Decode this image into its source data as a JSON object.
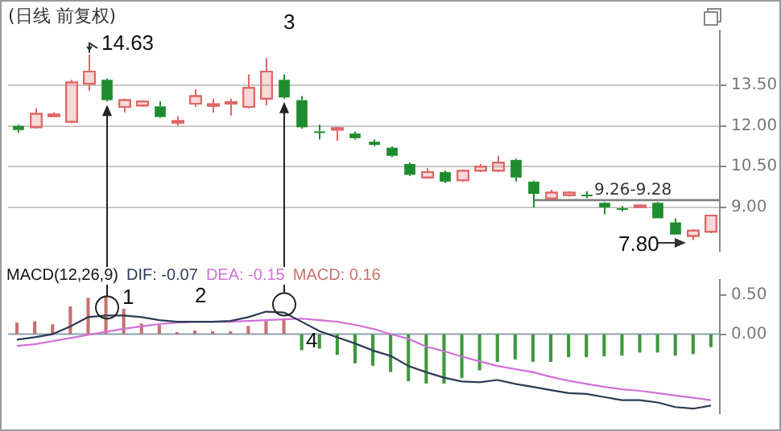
{
  "chart_data": [
    {
      "type": "candlestick",
      "title": "(日线 前复权)",
      "categories": [
        null,
        null,
        null,
        null,
        null,
        null,
        null,
        null,
        null,
        null,
        null,
        null,
        null,
        null,
        null,
        null,
        null,
        null,
        null,
        null,
        null,
        null,
        null,
        null,
        null,
        null,
        null,
        null,
        null,
        null,
        null,
        null,
        null,
        null,
        null,
        null,
        null,
        null,
        null,
        null
      ],
      "ohlc": [
        [
          12.0,
          12.05,
          11.75,
          11.85
        ],
        [
          11.95,
          12.65,
          11.9,
          12.45
        ],
        [
          12.4,
          12.5,
          12.35,
          12.42
        ],
        [
          12.15,
          13.7,
          12.1,
          13.6
        ],
        [
          13.55,
          14.63,
          13.3,
          14.0
        ],
        [
          13.7,
          13.75,
          12.9,
          12.95
        ],
        [
          12.7,
          13.0,
          12.5,
          12.95
        ],
        [
          12.75,
          12.95,
          12.7,
          12.9
        ],
        [
          12.72,
          12.9,
          12.3,
          12.33
        ],
        [
          12.12,
          12.35,
          12.0,
          12.18
        ],
        [
          12.82,
          13.35,
          12.7,
          13.1
        ],
        [
          12.75,
          13.0,
          12.5,
          12.8
        ],
        [
          12.85,
          13.0,
          12.38,
          12.88
        ],
        [
          12.7,
          13.9,
          12.65,
          13.4
        ],
        [
          13.0,
          14.5,
          12.75,
          14.0
        ],
        [
          13.7,
          13.9,
          13.0,
          13.05
        ],
        [
          12.95,
          13.1,
          11.9,
          11.95
        ],
        [
          11.8,
          12.05,
          11.5,
          11.76
        ],
        [
          11.88,
          11.95,
          11.45,
          11.92
        ],
        [
          11.72,
          11.8,
          11.5,
          11.55
        ],
        [
          11.42,
          11.5,
          11.25,
          11.3
        ],
        [
          11.2,
          11.25,
          10.85,
          10.9
        ],
        [
          10.6,
          10.65,
          10.15,
          10.2
        ],
        [
          10.1,
          10.45,
          10.05,
          10.3
        ],
        [
          10.3,
          10.35,
          9.9,
          9.95
        ],
        [
          10.0,
          10.4,
          9.95,
          10.35
        ],
        [
          10.35,
          10.6,
          10.3,
          10.5
        ],
        [
          10.35,
          10.9,
          10.3,
          10.65
        ],
        [
          10.75,
          10.8,
          9.95,
          10.1
        ],
        [
          9.95,
          9.98,
          9.0,
          9.5
        ],
        [
          9.33,
          9.65,
          9.3,
          9.55
        ],
        [
          9.45,
          9.6,
          9.4,
          9.55
        ],
        [
          9.47,
          9.6,
          9.35,
          9.43
        ],
        [
          9.17,
          9.2,
          8.75,
          9.0
        ],
        [
          8.97,
          9.05,
          8.85,
          8.93
        ],
        [
          9.03,
          9.1,
          8.98,
          9.07
        ],
        [
          9.17,
          9.2,
          8.6,
          8.6
        ],
        [
          8.45,
          8.6,
          8.0,
          8.0
        ],
        [
          7.95,
          8.2,
          7.8,
          8.15
        ],
        [
          8.1,
          8.7,
          8.05,
          8.7
        ]
      ],
      "colors": [
        "#1e8c2e",
        "#e06666",
        "#e06666",
        "#e06666",
        "#e06666",
        "#1e8c2e",
        "#e06666",
        "#e06666",
        "#1e8c2e",
        "#e06666",
        "#e06666",
        "#e06666",
        "#e06666",
        "#e06666",
        "#e06666",
        "#1e8c2e",
        "#1e8c2e",
        "#1e8c2e",
        "#e06666",
        "#1e8c2e",
        "#1e8c2e",
        "#1e8c2e",
        "#1e8c2e",
        "#e06666",
        "#1e8c2e",
        "#e06666",
        "#e06666",
        "#e06666",
        "#1e8c2e",
        "#1e8c2e",
        "#e06666",
        "#e06666",
        "#1e8c2e",
        "#1e8c2e",
        "#1e8c2e",
        "#e06666",
        "#1e8c2e",
        "#1e8c2e",
        "#e06666",
        "#e06666"
      ],
      "ylim": [
        7.4,
        15.5
      ],
      "yticks": [
        {
          "value": 9,
          "label": "9.00"
        },
        {
          "value": 10.5,
          "label": "10.50"
        },
        {
          "value": 12,
          "label": "12.00"
        },
        {
          "value": 13.5,
          "label": "13.50"
        }
      ],
      "grid": "y",
      "tick_labels": "y",
      "bands": [
        {
          "axis": "y",
          "from": 9.26,
          "to": 9.28,
          "label": "9.26-9.28",
          "color": "#808080"
        }
      ],
      "annotations": [
        "14.63",
        "7.80",
        "3"
      ]
    },
    {
      "type": "bar",
      "title": "MACD(12,26,9)",
      "categories": [
        null,
        null,
        null,
        null,
        null,
        null,
        null,
        null,
        null,
        null,
        null,
        null,
        null,
        null,
        null,
        null,
        null,
        null,
        null,
        null,
        null,
        null,
        null,
        null,
        null,
        null,
        null,
        null,
        null,
        null,
        null,
        null,
        null,
        null,
        null,
        null,
        null,
        null,
        null,
        null
      ],
      "series": [
        {
          "name": "DIF: -0.07",
          "type": "line",
          "color": "#2b3a55",
          "values": [
            -0.07,
            -0.04,
            0.0,
            0.1,
            0.22,
            0.24,
            0.24,
            0.22,
            0.18,
            0.16,
            0.16,
            0.16,
            0.17,
            0.22,
            0.29,
            0.28,
            0.16,
            0.04,
            -0.04,
            -0.12,
            -0.21,
            -0.28,
            -0.41,
            -0.49,
            -0.56,
            -0.61,
            -0.62,
            -0.59,
            -0.64,
            -0.68,
            -0.72,
            -0.76,
            -0.77,
            -0.81,
            -0.85,
            -0.85,
            -0.88,
            -0.94,
            -0.96,
            -0.92
          ]
        },
        {
          "name": "DEA: -0.15",
          "type": "line",
          "color": "#d070d8",
          "values": [
            -0.15,
            -0.13,
            -0.09,
            -0.05,
            -0.01,
            0.03,
            0.07,
            0.1,
            0.13,
            0.15,
            0.16,
            0.16,
            0.16,
            0.17,
            0.18,
            0.19,
            0.2,
            0.18,
            0.16,
            0.12,
            0.07,
            0.0,
            -0.06,
            -0.16,
            -0.22,
            -0.29,
            -0.35,
            -0.41,
            -0.45,
            -0.49,
            -0.55,
            -0.6,
            -0.64,
            -0.68,
            -0.71,
            -0.73,
            -0.76,
            -0.79,
            -0.82,
            -0.85
          ]
        },
        {
          "name": "MACD: 0.16",
          "type": "bar",
          "color": "#c87070",
          "colors": [
            "#c87070",
            "#c87070",
            "#c87070",
            "#c87070",
            "#c87070",
            "#c87070",
            "#c87070",
            "#c87070",
            "#c87070",
            "#c87070",
            "#c87070",
            "#c87070",
            "#c87070",
            "#c87070",
            "#c87070",
            "#c87070",
            "#3c9a3c",
            "#3c9a3c",
            "#3c9a3c",
            "#3c9a3c",
            "#3c9a3c",
            "#3c9a3c",
            "#3c9a3c",
            "#3c9a3c",
            "#3c9a3c",
            "#3c9a3c",
            "#3c9a3c",
            "#3c9a3c",
            "#3c9a3c",
            "#3c9a3c",
            "#3c9a3c",
            "#3c9a3c",
            "#3c9a3c",
            "#3c9a3c",
            "#3c9a3c",
            "#3c9a3c",
            "#3c9a3c",
            "#3c9a3c",
            "#3c9a3c",
            "#3c9a3c"
          ],
          "values": [
            0.14,
            0.16,
            0.12,
            0.35,
            0.46,
            0.49,
            0.32,
            0.13,
            0.11,
            0.02,
            0.04,
            0.03,
            0.03,
            0.1,
            0.16,
            0.18,
            -0.2,
            -0.18,
            -0.26,
            -0.37,
            -0.4,
            -0.48,
            -0.6,
            -0.63,
            -0.63,
            -0.56,
            -0.46,
            -0.35,
            -0.32,
            -0.35,
            -0.35,
            -0.29,
            -0.29,
            -0.28,
            -0.27,
            -0.23,
            -0.23,
            -0.27,
            -0.25,
            -0.16
          ]
        }
      ],
      "ylim": [
        -1.02,
        0.7
      ],
      "yticks": [
        {
          "value": 0,
          "label": "0.00"
        },
        {
          "value": 0.5,
          "label": "0.50"
        }
      ],
      "tick_labels": "y",
      "legend": "top left",
      "ref_lines": [
        {
          "axis": "y",
          "value": 0,
          "color": "#8aa0b0"
        }
      ],
      "annotations": [
        "1",
        "2",
        "4"
      ]
    }
  ]
}
